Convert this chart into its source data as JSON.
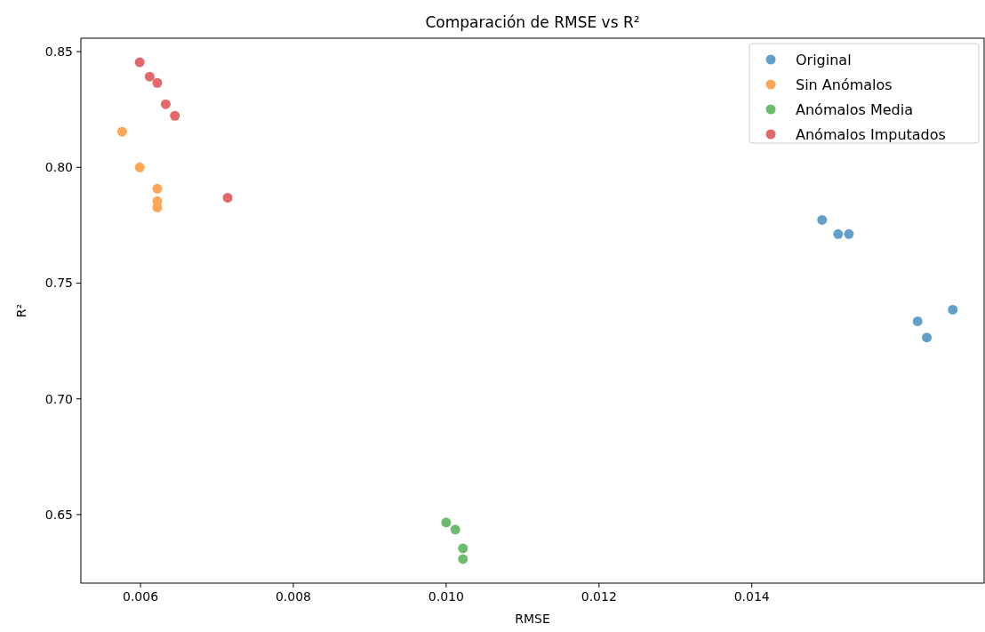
{
  "chart_data": {
    "type": "scatter",
    "title": "Comparación de RMSE vs R²",
    "xlabel": "RMSE",
    "ylabel": "R²",
    "xlim": [
      0.00522,
      0.01704
    ],
    "xticks": [
      {
        "value": 0.006,
        "label": "0.006"
      },
      {
        "value": 0.008,
        "label": "0.008"
      },
      {
        "value": 0.01,
        "label": "0.010"
      },
      {
        "value": 0.012,
        "label": "0.012"
      },
      {
        "value": 0.014,
        "label": "0.014"
      }
    ],
    "ylim": [
      0.6204,
      0.8558
    ],
    "yticks": [
      {
        "value": 0.65,
        "label": "0.65"
      },
      {
        "value": 0.7,
        "label": "0.70"
      },
      {
        "value": 0.75,
        "label": "0.75"
      },
      {
        "value": 0.8,
        "label": "0.80"
      },
      {
        "value": 0.85,
        "label": "0.85"
      }
    ],
    "grid": false,
    "legend": "top right",
    "marker": "circle",
    "series": [
      {
        "name": "Original",
        "color": "#62a0ca",
        "x": [
          0.01492,
          0.01513,
          0.01527,
          0.01617,
          0.01629,
          0.01663
        ],
        "values": [
          0.7773,
          0.7712,
          0.7712,
          0.7335,
          0.7265,
          0.7385
        ]
      },
      {
        "name": "Sin Anómalos",
        "color": "#ffa556",
        "x": [
          0.00576,
          0.00599,
          0.00622,
          0.00622,
          0.00622
        ],
        "values": [
          0.8154,
          0.8,
          0.7908,
          0.7854,
          0.7827
        ]
      },
      {
        "name": "Anómalos Media",
        "color": "#6bbd6b",
        "x": [
          0.01,
          0.01012,
          0.01022,
          0.01022
        ],
        "values": [
          0.6466,
          0.6435,
          0.6354,
          0.6308
        ]
      },
      {
        "name": "Anómalos Imputados",
        "color": "#e26869",
        "x": [
          0.00599,
          0.00612,
          0.00622,
          0.00633,
          0.00645,
          0.00714
        ],
        "values": [
          0.8454,
          0.8392,
          0.8365,
          0.8273,
          0.8223,
          0.7869
        ]
      }
    ]
  }
}
